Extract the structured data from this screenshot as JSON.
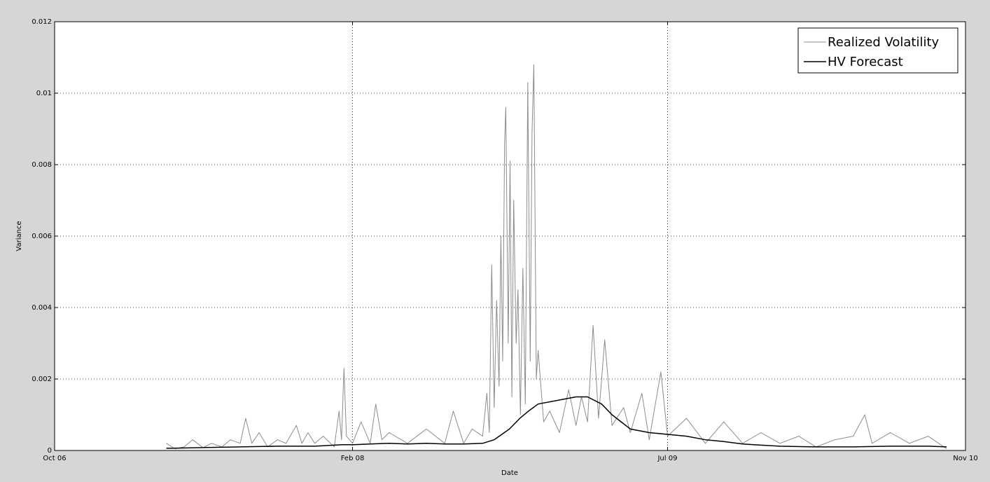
{
  "chart_data": {
    "type": "line",
    "title": "",
    "xlabel": "Date",
    "ylabel": "Variance",
    "xlim": [
      "2006-10-01",
      "2010-11-01"
    ],
    "ylim": [
      0,
      0.012
    ],
    "x_ticks": [
      {
        "date": "2006-10-01",
        "label": "Oct 06"
      },
      {
        "date": "2008-02-01",
        "label": "Feb 08"
      },
      {
        "date": "2009-07-01",
        "label": "Jul 09"
      },
      {
        "date": "2010-11-01",
        "label": "Nov 10"
      }
    ],
    "y_ticks": [
      {
        "value": 0,
        "label": "0"
      },
      {
        "value": 0.002,
        "label": "0.002"
      },
      {
        "value": 0.004,
        "label": "0.004"
      },
      {
        "value": 0.006,
        "label": "0.006"
      },
      {
        "value": 0.008,
        "label": "0.008"
      },
      {
        "value": 0.01,
        "label": "0.01"
      },
      {
        "value": 0.012,
        "label": "0.012"
      }
    ],
    "grid": true,
    "legend": "top-right",
    "series": [
      {
        "name": "Realized Volatility",
        "color": "#8c8c8c",
        "points": [
          [
            "2007-04-02",
            0.0002
          ],
          [
            "2007-04-16",
            5e-05
          ],
          [
            "2007-05-01",
            0.0001
          ],
          [
            "2007-05-15",
            0.0003
          ],
          [
            "2007-06-01",
            8e-05
          ],
          [
            "2007-06-15",
            0.0002
          ],
          [
            "2007-07-02",
            0.0001
          ],
          [
            "2007-07-16",
            0.0003
          ],
          [
            "2007-08-01",
            0.0002
          ],
          [
            "2007-08-10",
            0.0009
          ],
          [
            "2007-08-20",
            0.0002
          ],
          [
            "2007-09-01",
            0.0005
          ],
          [
            "2007-09-15",
            0.0001
          ],
          [
            "2007-10-01",
            0.0003
          ],
          [
            "2007-10-15",
            0.0002
          ],
          [
            "2007-11-01",
            0.0007
          ],
          [
            "2007-11-10",
            0.0002
          ],
          [
            "2007-11-20",
            0.0005
          ],
          [
            "2007-12-01",
            0.0002
          ],
          [
            "2007-12-15",
            0.0004
          ],
          [
            "2008-01-02",
            0.0001
          ],
          [
            "2008-01-10",
            0.0011
          ],
          [
            "2008-01-14",
            0.0003
          ],
          [
            "2008-01-18",
            0.0023
          ],
          [
            "2008-01-22",
            0.0004
          ],
          [
            "2008-02-01",
            0.0002
          ],
          [
            "2008-02-15",
            0.0008
          ],
          [
            "2008-03-01",
            0.0002
          ],
          [
            "2008-03-10",
            0.0013
          ],
          [
            "2008-03-20",
            0.0003
          ],
          [
            "2008-04-01",
            0.0005
          ],
          [
            "2008-05-01",
            0.0002
          ],
          [
            "2008-06-01",
            0.0006
          ],
          [
            "2008-07-01",
            0.0002
          ],
          [
            "2008-07-15",
            0.0011
          ],
          [
            "2008-08-01",
            0.0002
          ],
          [
            "2008-08-15",
            0.0006
          ],
          [
            "2008-09-01",
            0.0004
          ],
          [
            "2008-09-08",
            0.0016
          ],
          [
            "2008-09-12",
            0.0005
          ],
          [
            "2008-09-16",
            0.0052
          ],
          [
            "2008-09-20",
            0.0012
          ],
          [
            "2008-09-24",
            0.0042
          ],
          [
            "2008-09-28",
            0.0018
          ],
          [
            "2008-10-01",
            0.006
          ],
          [
            "2008-10-04",
            0.0025
          ],
          [
            "2008-10-07",
            0.0086
          ],
          [
            "2008-10-09",
            0.0096
          ],
          [
            "2008-10-13",
            0.003
          ],
          [
            "2008-10-16",
            0.0081
          ],
          [
            "2008-10-19",
            0.0015
          ],
          [
            "2008-10-22",
            0.007
          ],
          [
            "2008-10-26",
            0.003
          ],
          [
            "2008-10-29",
            0.0045
          ],
          [
            "2008-11-02",
            0.001
          ],
          [
            "2008-11-06",
            0.0051
          ],
          [
            "2008-11-10",
            0.0013
          ],
          [
            "2008-11-14",
            0.0103
          ],
          [
            "2008-11-18",
            0.0025
          ],
          [
            "2008-11-21",
            0.0089
          ],
          [
            "2008-11-24",
            0.0108
          ],
          [
            "2008-11-28",
            0.002
          ],
          [
            "2008-12-01",
            0.0028
          ],
          [
            "2008-12-10",
            0.0008
          ],
          [
            "2008-12-20",
            0.0011
          ],
          [
            "2009-01-05",
            0.0005
          ],
          [
            "2009-01-20",
            0.0017
          ],
          [
            "2009-02-01",
            0.0007
          ],
          [
            "2009-02-10",
            0.0015
          ],
          [
            "2009-02-20",
            0.0008
          ],
          [
            "2009-03-01",
            0.0035
          ],
          [
            "2009-03-10",
            0.0009
          ],
          [
            "2009-03-20",
            0.0031
          ],
          [
            "2009-04-01",
            0.0007
          ],
          [
            "2009-04-20",
            0.0012
          ],
          [
            "2009-05-01",
            0.0005
          ],
          [
            "2009-05-20",
            0.0016
          ],
          [
            "2009-06-01",
            0.0003
          ],
          [
            "2009-06-20",
            0.0022
          ],
          [
            "2009-07-01",
            0.0004
          ],
          [
            "2009-08-01",
            0.0009
          ],
          [
            "2009-09-01",
            0.0002
          ],
          [
            "2009-10-01",
            0.0008
          ],
          [
            "2009-11-01",
            0.0002
          ],
          [
            "2009-12-01",
            0.0005
          ],
          [
            "2010-01-01",
            0.0002
          ],
          [
            "2010-02-01",
            0.0004
          ],
          [
            "2010-03-01",
            0.0001
          ],
          [
            "2010-04-01",
            0.0003
          ],
          [
            "2010-05-01",
            0.0004
          ],
          [
            "2010-05-20",
            0.001
          ],
          [
            "2010-06-01",
            0.0002
          ],
          [
            "2010-07-01",
            0.0005
          ],
          [
            "2010-08-01",
            0.0002
          ],
          [
            "2010-09-01",
            0.0004
          ],
          [
            "2010-10-01",
            5e-05
          ]
        ]
      },
      {
        "name": "HV Forecast",
        "color": "#000000",
        "points": [
          [
            "2007-04-02",
            6e-05
          ],
          [
            "2007-06-01",
            8e-05
          ],
          [
            "2007-08-01",
            0.0001
          ],
          [
            "2007-10-01",
            0.00012
          ],
          [
            "2007-12-01",
            0.00012
          ],
          [
            "2008-01-15",
            0.00016
          ],
          [
            "2008-02-01",
            0.00016
          ],
          [
            "2008-03-01",
            0.00018
          ],
          [
            "2008-04-01",
            0.0002
          ],
          [
            "2008-05-01",
            0.00018
          ],
          [
            "2008-06-01",
            0.0002
          ],
          [
            "2008-07-01",
            0.00018
          ],
          [
            "2008-08-01",
            0.00018
          ],
          [
            "2008-09-01",
            0.0002
          ],
          [
            "2008-09-20",
            0.0003
          ],
          [
            "2008-10-15",
            0.0006
          ],
          [
            "2008-11-01",
            0.0009
          ],
          [
            "2008-11-15",
            0.0011
          ],
          [
            "2008-12-01",
            0.0013
          ],
          [
            "2009-01-01",
            0.0014
          ],
          [
            "2009-02-01",
            0.0015
          ],
          [
            "2009-02-20",
            0.0015
          ],
          [
            "2009-03-15",
            0.0013
          ],
          [
            "2009-04-01",
            0.001
          ],
          [
            "2009-05-01",
            0.0006
          ],
          [
            "2009-06-01",
            0.0005
          ],
          [
            "2009-07-01",
            0.00045
          ],
          [
            "2009-08-01",
            0.0004
          ],
          [
            "2009-09-01",
            0.0003
          ],
          [
            "2009-10-01",
            0.00025
          ],
          [
            "2009-11-01",
            0.00018
          ],
          [
            "2009-12-01",
            0.00015
          ],
          [
            "2010-01-01",
            0.00012
          ],
          [
            "2010-03-01",
            0.0001
          ],
          [
            "2010-05-01",
            0.0001
          ],
          [
            "2010-07-01",
            0.00012
          ],
          [
            "2010-09-01",
            0.00012
          ],
          [
            "2010-10-01",
            0.0001
          ]
        ]
      }
    ]
  }
}
